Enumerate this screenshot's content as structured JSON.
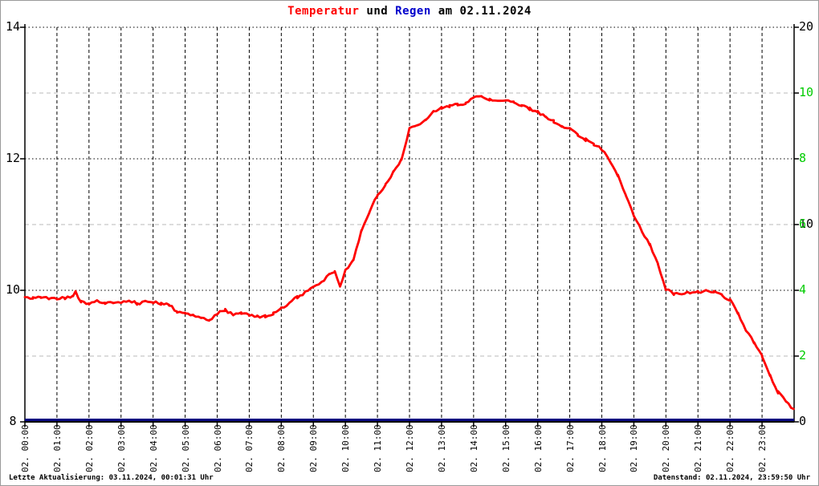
{
  "title": {
    "part1": "Temperatur",
    "part2": "und",
    "part3": "Regen",
    "part4": "am 02.11.2024"
  },
  "footer": {
    "left": "Letzte Aktualisierung: 03.11.2024, 00:01:31 Uhr",
    "right": "Datenstand: 02.11.2024, 23:59:50 Uhr"
  },
  "colors": {
    "temperature_line": "#ff0000",
    "rain_line": "#000080",
    "title_temperatur": "#ff0000",
    "title_regen": "#0000cc",
    "right_axis_green": "#00cc00",
    "grid_major": "#000000",
    "grid_minor": "#b8b8b8",
    "axis": "#000000",
    "frame_border": "#9a9a9a"
  },
  "axes": {
    "left": {
      "labels": [
        {
          "text": "14",
          "value": 14
        },
        {
          "text": "12",
          "value": 12
        },
        {
          "text": "10",
          "value": 10
        },
        {
          "text": "8",
          "value": 8
        }
      ]
    },
    "right": {
      "labels": [
        {
          "text": "20",
          "color": "#000000",
          "at": 14
        },
        {
          "text": "10",
          "color": "#00cc00",
          "at": 13
        },
        {
          "text": "8",
          "color": "#00cc00",
          "at": 12
        },
        {
          "text": "6",
          "color": "#00cc00",
          "at": 11,
          "behind_text": "10",
          "behind_color": "#000000"
        },
        {
          "text": "4",
          "color": "#00cc00",
          "at": 10
        },
        {
          "text": "2",
          "color": "#00cc00",
          "at": 9
        },
        {
          "text": "0",
          "color": "#000000",
          "at": 8
        }
      ]
    },
    "x": {
      "labels": [
        "02. 00:00",
        "02. 01:00",
        "02. 02:00",
        "02. 03:00",
        "02. 04:00",
        "02. 05:00",
        "02. 06:00",
        "02. 07:00",
        "02. 08:00",
        "02. 09:00",
        "02. 10:00",
        "02. 11:00",
        "02. 12:00",
        "02. 13:00",
        "02. 14:00",
        "02. 15:00",
        "02. 16:00",
        "02. 17:00",
        "02. 18:00",
        "02. 19:00",
        "02. 20:00",
        "02. 21:00",
        "02. 22:00",
        "02. 23:00"
      ]
    }
  },
  "chart_data": {
    "type": "line",
    "title": "Temperatur und Regen am 02.11.2024",
    "x_axis": {
      "tick_labels_hours": [
        0,
        1,
        2,
        3,
        4,
        5,
        6,
        7,
        8,
        9,
        10,
        11,
        12,
        13,
        14,
        15,
        16,
        17,
        18,
        19,
        20,
        21,
        22,
        23
      ],
      "range_hours": [
        0,
        24
      ],
      "grid": "dashed-vertical-per-hour"
    },
    "y_axis_left": {
      "range": [
        8,
        14
      ],
      "tick_labels": [
        "8",
        "10",
        "12",
        "14"
      ],
      "major_gridlines": [
        10,
        12,
        14
      ],
      "minor_gridlines": [
        9,
        11,
        13
      ]
    },
    "y_axis_right": {
      "tick_labels_bottom_to_top": [
        "0",
        "2",
        "4",
        "6",
        "8",
        "10",
        "20"
      ],
      "label_color": "green-with-black-0-10-20"
    },
    "legend": "none",
    "series": [
      {
        "name": "Temperatur",
        "color": "#ff0000",
        "axis": "left",
        "points": [
          [
            "00:00",
            9.9
          ],
          [
            "00:15",
            9.88
          ],
          [
            "00:30",
            9.9
          ],
          [
            "00:45",
            9.88
          ],
          [
            "01:00",
            9.87
          ],
          [
            "01:15",
            9.88
          ],
          [
            "01:30",
            9.9
          ],
          [
            "01:35",
            9.97
          ],
          [
            "01:45",
            9.82
          ],
          [
            "02:00",
            9.8
          ],
          [
            "02:15",
            9.83
          ],
          [
            "02:30",
            9.8
          ],
          [
            "02:45",
            9.82
          ],
          [
            "03:00",
            9.8
          ],
          [
            "03:15",
            9.85
          ],
          [
            "03:30",
            9.8
          ],
          [
            "03:45",
            9.82
          ],
          [
            "04:00",
            9.82
          ],
          [
            "04:15",
            9.8
          ],
          [
            "04:30",
            9.78
          ],
          [
            "04:45",
            9.68
          ],
          [
            "05:00",
            9.65
          ],
          [
            "05:15",
            9.62
          ],
          [
            "05:30",
            9.6
          ],
          [
            "05:45",
            9.53
          ],
          [
            "06:00",
            9.65
          ],
          [
            "06:15",
            9.7
          ],
          [
            "06:30",
            9.63
          ],
          [
            "06:45",
            9.65
          ],
          [
            "07:00",
            9.63
          ],
          [
            "07:15",
            9.6
          ],
          [
            "07:30",
            9.6
          ],
          [
            "07:45",
            9.65
          ],
          [
            "08:00",
            9.72
          ],
          [
            "08:15",
            9.8
          ],
          [
            "08:30",
            9.9
          ],
          [
            "08:45",
            9.97
          ],
          [
            "09:00",
            10.05
          ],
          [
            "09:15",
            10.12
          ],
          [
            "09:30",
            10.25
          ],
          [
            "09:40",
            10.28
          ],
          [
            "09:50",
            10.05
          ],
          [
            "10:00",
            10.3
          ],
          [
            "10:15",
            10.45
          ],
          [
            "10:30",
            10.9
          ],
          [
            "10:45",
            11.2
          ],
          [
            "11:00",
            11.45
          ],
          [
            "11:15",
            11.6
          ],
          [
            "11:30",
            11.8
          ],
          [
            "11:45",
            12.0
          ],
          [
            "12:00",
            12.45
          ],
          [
            "12:15",
            12.52
          ],
          [
            "12:30",
            12.6
          ],
          [
            "12:45",
            12.72
          ],
          [
            "13:00",
            12.78
          ],
          [
            "13:15",
            12.8
          ],
          [
            "13:30",
            12.82
          ],
          [
            "13:45",
            12.85
          ],
          [
            "14:00",
            12.92
          ],
          [
            "14:15",
            12.95
          ],
          [
            "14:30",
            12.9
          ],
          [
            "14:45",
            12.88
          ],
          [
            "15:00",
            12.88
          ],
          [
            "15:15",
            12.86
          ],
          [
            "15:30",
            12.8
          ],
          [
            "15:45",
            12.76
          ],
          [
            "16:00",
            12.71
          ],
          [
            "16:15",
            12.63
          ],
          [
            "16:30",
            12.57
          ],
          [
            "16:45",
            12.5
          ],
          [
            "17:00",
            12.45
          ],
          [
            "17:15",
            12.36
          ],
          [
            "17:30",
            12.29
          ],
          [
            "17:45",
            12.22
          ],
          [
            "18:00",
            12.15
          ],
          [
            "18:15",
            11.98
          ],
          [
            "18:30",
            11.75
          ],
          [
            "18:45",
            11.45
          ],
          [
            "19:00",
            11.15
          ],
          [
            "19:15",
            10.9
          ],
          [
            "19:30",
            10.7
          ],
          [
            "19:45",
            10.4
          ],
          [
            "20:00",
            10.02
          ],
          [
            "20:15",
            9.95
          ],
          [
            "20:30",
            9.95
          ],
          [
            "20:45",
            9.97
          ],
          [
            "21:00",
            9.97
          ],
          [
            "21:15",
            10.0
          ],
          [
            "21:30",
            9.97
          ],
          [
            "21:45",
            9.92
          ],
          [
            "22:00",
            9.85
          ],
          [
            "22:15",
            9.65
          ],
          [
            "22:30",
            9.4
          ],
          [
            "22:45",
            9.2
          ],
          [
            "23:00",
            9.0
          ],
          [
            "23:15",
            8.7
          ],
          [
            "23:30",
            8.45
          ],
          [
            "23:45",
            8.3
          ],
          [
            "23:59",
            8.2
          ]
        ]
      },
      {
        "name": "Regen",
        "color": "#000080",
        "axis": "right",
        "points": [
          [
            "00:00",
            0
          ],
          [
            "23:59",
            0
          ]
        ]
      }
    ]
  }
}
